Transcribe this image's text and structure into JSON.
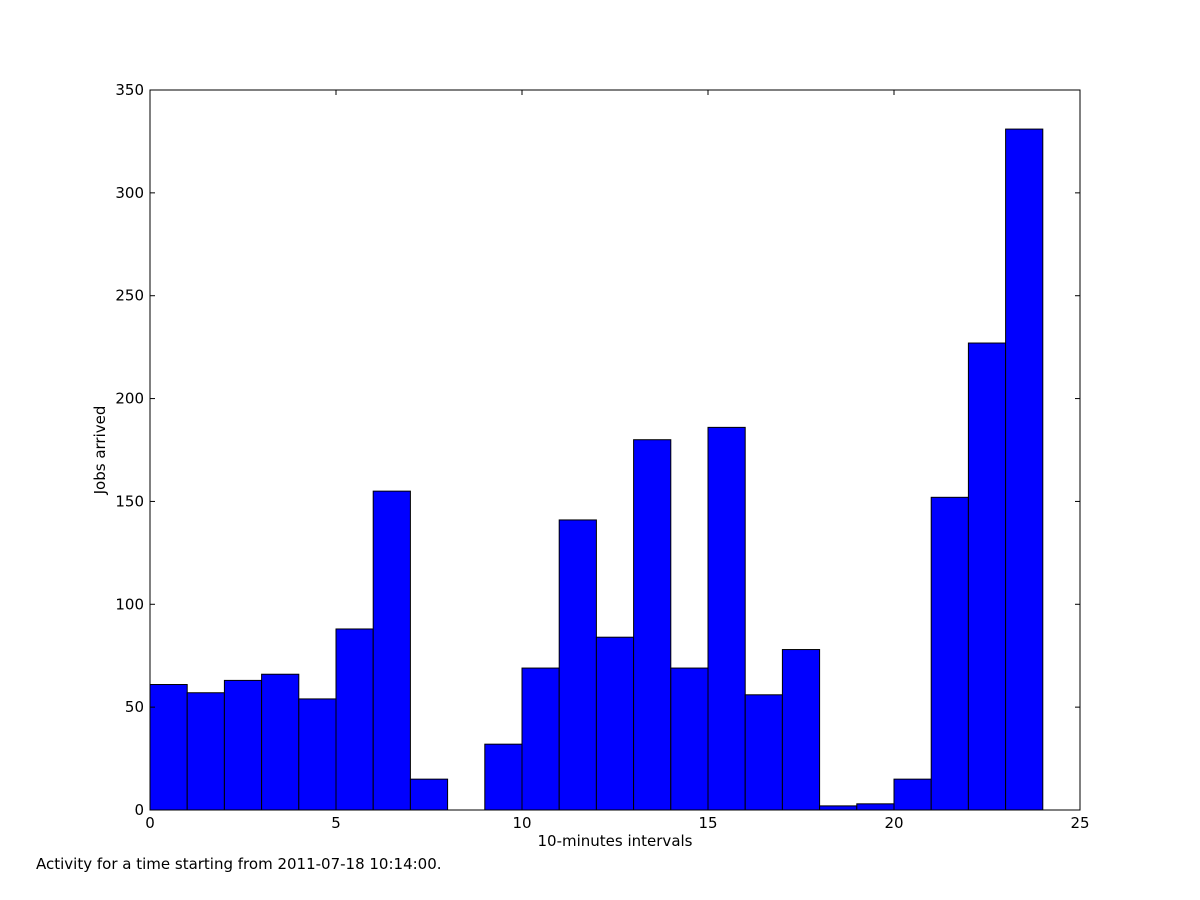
{
  "chart_data": {
    "type": "bar",
    "xlabel": "10-minutes intervals",
    "ylabel": "Jobs arrived",
    "xlim": [
      0,
      25
    ],
    "ylim": [
      0,
      350
    ],
    "xticks": [
      0,
      5,
      10,
      15,
      20,
      25
    ],
    "yticks": [
      0,
      50,
      100,
      150,
      200,
      250,
      300,
      350
    ],
    "bin_width": 1,
    "bins": [
      {
        "x": 0,
        "value": 61
      },
      {
        "x": 1,
        "value": 57
      },
      {
        "x": 2,
        "value": 63
      },
      {
        "x": 3,
        "value": 66
      },
      {
        "x": 4,
        "value": 54
      },
      {
        "x": 5,
        "value": 88
      },
      {
        "x": 6,
        "value": 155
      },
      {
        "x": 7,
        "value": 15
      },
      {
        "x": 8,
        "value": 0
      },
      {
        "x": 9,
        "value": 32
      },
      {
        "x": 10,
        "value": 69
      },
      {
        "x": 11,
        "value": 141
      },
      {
        "x": 12,
        "value": 84
      },
      {
        "x": 13,
        "value": 180
      },
      {
        "x": 14,
        "value": 69
      },
      {
        "x": 15,
        "value": 186
      },
      {
        "x": 16,
        "value": 56
      },
      {
        "x": 17,
        "value": 78
      },
      {
        "x": 18,
        "value": 2
      },
      {
        "x": 19,
        "value": 3
      },
      {
        "x": 20,
        "value": 15
      },
      {
        "x": 21,
        "value": 152
      },
      {
        "x": 22,
        "value": 227
      },
      {
        "x": 23,
        "value": 331
      }
    ],
    "bar_color": "#0000ff",
    "edge_color": "#000000",
    "grid": false
  },
  "caption": "Activity for a time starting from 2011-07-18 10:14:00."
}
